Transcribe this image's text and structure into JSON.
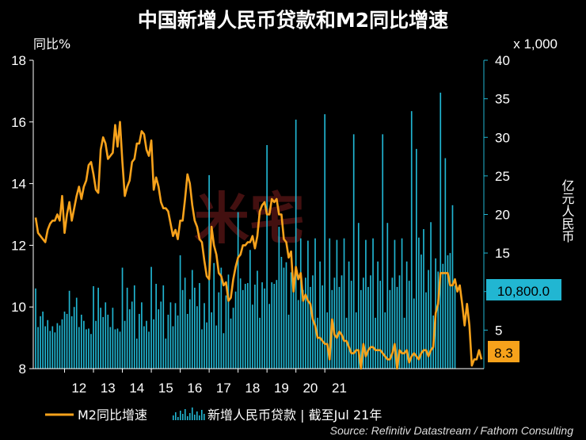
{
  "chart_data": {
    "type": "bar+line",
    "title": "中国新增人民币贷款和M2同比增速",
    "y_left_label": "同比%",
    "y_right_label": "亿元人民币",
    "y_right_multiplier": "x 1,000",
    "y_left_lim": [
      8,
      18
    ],
    "y_right_lim": [
      0,
      40
    ],
    "y_left_ticks": [
      "8",
      "10",
      "12",
      "14",
      "16",
      "18"
    ],
    "y_right_ticks": [
      "5",
      "10",
      "15",
      "20",
      "25",
      "30",
      "35",
      "40"
    ],
    "x_ticks": [
      "12",
      "13",
      "14",
      "15",
      "16",
      "17",
      "18",
      "19",
      "20",
      "21"
    ],
    "x_start": "2011-01",
    "x_end": "2021-07",
    "grid": false,
    "legend_position": "bottom",
    "series": [
      {
        "name": "M2同比增速",
        "type": "line",
        "axis": "left",
        "color": "#f7a21b",
        "values": [
          12.9,
          12.4,
          12.3,
          12.2,
          12.1,
          12.5,
          12.7,
          12.8,
          12.8,
          13.0,
          12.8,
          13.6,
          12.4,
          13.0,
          13.4,
          12.8,
          13.2,
          13.6,
          13.9,
          13.5,
          13.9,
          14.1,
          14.6,
          14.7,
          14.3,
          13.8,
          13.7,
          15.1,
          15.5,
          15.3,
          14.8,
          14.9,
          15.0,
          15.9,
          15.2,
          16.0,
          14.7,
          13.6,
          13.9,
          14.1,
          14.7,
          14.8,
          15.3,
          15.3,
          15.7,
          15.6,
          15.1,
          14.9,
          15.4,
          13.8,
          14.2,
          13.9,
          13.4,
          13.2,
          13.2,
          13.1,
          12.7,
          12.3,
          12.5,
          12.2,
          12.8,
          12.8,
          13.5,
          14.3,
          14.0,
          13.3,
          12.8,
          12.6,
          12.2,
          12.1,
          11.5,
          11.0,
          10.9,
          12.6,
          12.0,
          11.7,
          11.1,
          11.0,
          10.7,
          10.8,
          10.2,
          10.3,
          10.9,
          11.3,
          11.6,
          11.7,
          12.0,
          12.0,
          12.1,
          12.1,
          12.3,
          11.9,
          12.3,
          13.1,
          13.3,
          13.4,
          13.0,
          13.0,
          13.5,
          13.4,
          13.5,
          13.0,
          13.0,
          12.2,
          12.1,
          11.6,
          11.8,
          10.5,
          11.3,
          10.9,
          11.1,
          10.2,
          10.4,
          10.2,
          10.1,
          9.6,
          9.4,
          9.0,
          9.0,
          8.9,
          8.8,
          8.8,
          8.3,
          9.6,
          9.1,
          9.0,
          9.2,
          9.1,
          8.9,
          8.9,
          8.7,
          8.5,
          8.5,
          8.6,
          8.6,
          8.0,
          8.8,
          8.4,
          8.6,
          8.7,
          8.7,
          8.6,
          8.6,
          8.6,
          8.5,
          8.4,
          8.3,
          8.3,
          8.5,
          8.8,
          8.0,
          8.6,
          8.5,
          8.5,
          8.6,
          8.2,
          8.4,
          8.5,
          8.4,
          8.3,
          8.5,
          8.6,
          8.6,
          8.4,
          8.6,
          8.7,
          9.8,
          10.1,
          11.1,
          11.1,
          11.1,
          11.1,
          10.7,
          10.7,
          10.9,
          10.5,
          10.7,
          10.1,
          9.4,
          10.1,
          9.4,
          8.1,
          8.3,
          8.3,
          8.6,
          8.3
        ],
        "end_label": "8.3"
      },
      {
        "name": "新增人民币贷款 | 截至Jul 21年",
        "type": "bar",
        "axis": "right",
        "color": "#21b6d2",
        "values": [
          10.4,
          5.4,
          6.8,
          7.4,
          5.5,
          6.3,
          4.9,
          5.5,
          4.7,
          5.9,
          5.6,
          6.4,
          7.4,
          7.1,
          10.1,
          6.8,
          8.0,
          9.2,
          5.4,
          7.0,
          6.2,
          5.1,
          5.2,
          4.5,
          10.7,
          6.2,
          10.5,
          7.9,
          6.7,
          8.6,
          7.0,
          5.4,
          7.9,
          5.1,
          5.2,
          4.8,
          13.1,
          6.2,
          10.5,
          7.7,
          8.7,
          10.8,
          3.9,
          7.1,
          8.6,
          5.5,
          6.2,
          4.8,
          13.2,
          6.4,
          11.0,
          7.7,
          8.7,
          10.8,
          3.9,
          7.0,
          8.6,
          5.5,
          8.5,
          6.9,
          14.7,
          10.2,
          11.8,
          7.1,
          9.0,
          12.8,
          10.5,
          8.1,
          11.1,
          5.1,
          8.5,
          6.0,
          25.1,
          7.3,
          13.7,
          5.6,
          9.9,
          13.1,
          4.6,
          9.5,
          12.2,
          6.5,
          7.9,
          10.0,
          20.3,
          11.7,
          10.2,
          11.0,
          11.1,
          15.4,
          8.3,
          10.9,
          12.7,
          6.6,
          11.2,
          10.4,
          29.0,
          8.4,
          11.2,
          11.0,
          11.5,
          18.4,
          14.5,
          13.1,
          13.8,
          7.0,
          12.5,
          10.8,
          32.3,
          8.9,
          16.9,
          10.2,
          11.8,
          16.6,
          10.6,
          12.1,
          16.9,
          6.6,
          13.9,
          10.8,
          33.0,
          7.3,
          16.9,
          10.2,
          11.8,
          16.7,
          10.6,
          12.1,
          16.9,
          6.6,
          13.9,
          11.4,
          30.4,
          7.3,
          18.9,
          10.2,
          11.8,
          16.7,
          10.6,
          12.1,
          16.9,
          6.6,
          13.9,
          11.4,
          30.4,
          7.3,
          18.9,
          10.2,
          11.8,
          16.7,
          10.6,
          12.1,
          16.9,
          6.6,
          13.9,
          11.4,
          33.4,
          9.1,
          28.5,
          17.0,
          14.8,
          18.1,
          9.9,
          12.8,
          19.0,
          6.9,
          14.3,
          12.6,
          35.8,
          13.6,
          27.3,
          14.7,
          15.0,
          21.2,
          10.8
        ]
      }
    ],
    "right_end_label": "10,800.0",
    "source": "Source: Refinitiv Datastream / Fathom Consulting"
  }
}
